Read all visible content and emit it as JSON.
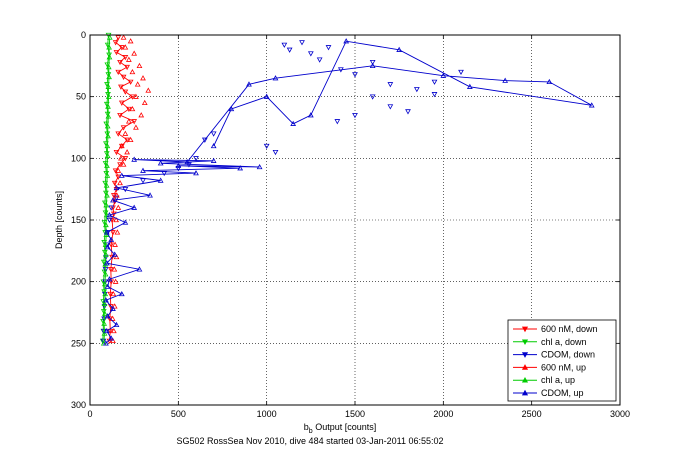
{
  "chart_data": {
    "type": "scatter",
    "title": "",
    "xlabel_main": "b",
    "xlabel_sub": "b",
    "xlabel_rest": " Output [counts]",
    "ylabel": "Depth [counts]",
    "caption": "SG502 RossSea Nov 2010, dive 484 started 03-Jan-2011 06:55:02",
    "xlim": [
      0,
      3000
    ],
    "ylim": [
      0,
      300
    ],
    "y_reversed": true,
    "grid": true,
    "xticks": [
      0,
      500,
      1000,
      1500,
      2000,
      2500,
      3000
    ],
    "yticks": [
      0,
      50,
      100,
      150,
      200,
      250,
      300
    ],
    "legend_position": "bottom-right",
    "series": [
      {
        "name": "600 nM, down",
        "color": "#ff0000",
        "marker": "triangle-down",
        "line": true,
        "points": [
          [
            160,
            2
          ],
          [
            145,
            6
          ],
          [
            180,
            10
          ],
          [
            150,
            14
          ],
          [
            200,
            18
          ],
          [
            170,
            22
          ],
          [
            210,
            26
          ],
          [
            160,
            30
          ],
          [
            190,
            34
          ],
          [
            230,
            38
          ],
          [
            175,
            42
          ],
          [
            200,
            46
          ],
          [
            240,
            50
          ],
          [
            180,
            55
          ],
          [
            220,
            60
          ],
          [
            170,
            65
          ],
          [
            250,
            70
          ],
          [
            190,
            75
          ],
          [
            160,
            80
          ],
          [
            210,
            85
          ],
          [
            180,
            90
          ],
          [
            150,
            95
          ],
          [
            200,
            100
          ],
          [
            170,
            105
          ],
          [
            145,
            110
          ],
          [
            160,
            115
          ],
          [
            140,
            120
          ],
          [
            150,
            125
          ],
          [
            135,
            130
          ],
          [
            140,
            135
          ],
          [
            130,
            140
          ],
          [
            135,
            145
          ],
          [
            125,
            150
          ],
          [
            130,
            160
          ],
          [
            120,
            170
          ],
          [
            125,
            180
          ],
          [
            118,
            190
          ],
          [
            120,
            200
          ],
          [
            115,
            210
          ],
          [
            118,
            220
          ],
          [
            112,
            230
          ],
          [
            115,
            240
          ],
          [
            110,
            248
          ]
        ]
      },
      {
        "name": "chl a, down",
        "color": "#00cc00",
        "marker": "triangle-down",
        "line": true,
        "points": [
          [
            105,
            0
          ],
          [
            100,
            8
          ],
          [
            108,
            16
          ],
          [
            98,
            24
          ],
          [
            104,
            32
          ],
          [
            96,
            40
          ],
          [
            102,
            48
          ],
          [
            95,
            56
          ],
          [
            100,
            64
          ],
          [
            92,
            72
          ],
          [
            98,
            80
          ],
          [
            90,
            88
          ],
          [
            95,
            96
          ],
          [
            88,
            104
          ],
          [
            92,
            112
          ],
          [
            86,
            120
          ],
          [
            90,
            128
          ],
          [
            84,
            136
          ],
          [
            88,
            144
          ],
          [
            82,
            152
          ],
          [
            86,
            160
          ],
          [
            80,
            168
          ],
          [
            84,
            176
          ],
          [
            78,
            184
          ],
          [
            82,
            192
          ],
          [
            76,
            200
          ],
          [
            80,
            208
          ],
          [
            75,
            216
          ],
          [
            78,
            224
          ],
          [
            74,
            232
          ],
          [
            76,
            240
          ],
          [
            72,
            248
          ]
        ]
      },
      {
        "name": "CDOM, down",
        "color": "#0000cc",
        "marker": "triangle-down",
        "line": false,
        "points": [
          [
            1100,
            8
          ],
          [
            1130,
            12
          ],
          [
            1200,
            6
          ],
          [
            1250,
            15
          ],
          [
            1300,
            20
          ],
          [
            1350,
            10
          ],
          [
            1420,
            28
          ],
          [
            1500,
            32
          ],
          [
            1600,
            22
          ],
          [
            1700,
            40
          ],
          [
            1850,
            44
          ],
          [
            1950,
            38
          ],
          [
            2100,
            30
          ],
          [
            1600,
            50
          ],
          [
            1700,
            58
          ],
          [
            1800,
            62
          ],
          [
            1950,
            48
          ],
          [
            1500,
            65
          ],
          [
            1400,
            70
          ],
          [
            700,
            80
          ],
          [
            650,
            85
          ],
          [
            1000,
            90
          ],
          [
            1050,
            95
          ],
          [
            600,
            100
          ],
          [
            560,
            105
          ],
          [
            500,
            108
          ],
          [
            420,
            112
          ],
          [
            300,
            118
          ],
          [
            200,
            125
          ],
          [
            150,
            132
          ],
          [
            120,
            140
          ],
          [
            110,
            150
          ],
          [
            100,
            160
          ],
          [
            95,
            170
          ],
          [
            90,
            180
          ],
          [
            88,
            190
          ],
          [
            86,
            200
          ],
          [
            84,
            210
          ],
          [
            82,
            220
          ],
          [
            80,
            230
          ],
          [
            78,
            240
          ],
          [
            76,
            248
          ]
        ]
      },
      {
        "name": "600 nM, up",
        "color": "#ff0000",
        "marker": "triangle-up",
        "line": false,
        "points": [
          [
            130,
            248
          ],
          [
            135,
            240
          ],
          [
            128,
            230
          ],
          [
            140,
            220
          ],
          [
            132,
            210
          ],
          [
            145,
            200
          ],
          [
            138,
            190
          ],
          [
            150,
            180
          ],
          [
            142,
            170
          ],
          [
            155,
            160
          ],
          [
            148,
            150
          ],
          [
            160,
            140
          ],
          [
            152,
            130
          ],
          [
            170,
            120
          ],
          [
            160,
            110
          ],
          [
            190,
            105
          ],
          [
            175,
            100
          ],
          [
            210,
            95
          ],
          [
            180,
            90
          ],
          [
            230,
            85
          ],
          [
            200,
            80
          ],
          [
            260,
            75
          ],
          [
            220,
            70
          ],
          [
            290,
            65
          ],
          [
            240,
            60
          ],
          [
            310,
            55
          ],
          [
            260,
            50
          ],
          [
            330,
            45
          ],
          [
            270,
            40
          ],
          [
            300,
            35
          ],
          [
            240,
            30
          ],
          [
            280,
            25
          ],
          [
            220,
            20
          ],
          [
            250,
            15
          ],
          [
            200,
            10
          ],
          [
            230,
            5
          ],
          [
            190,
            2
          ]
        ]
      },
      {
        "name": "chl a, up",
        "color": "#00cc00",
        "marker": "triangle-up",
        "line": true,
        "points": [
          [
            78,
            250
          ],
          [
            82,
            242
          ],
          [
            80,
            234
          ],
          [
            84,
            226
          ],
          [
            82,
            218
          ],
          [
            86,
            210
          ],
          [
            84,
            202
          ],
          [
            88,
            194
          ],
          [
            86,
            186
          ],
          [
            90,
            178
          ],
          [
            88,
            170
          ],
          [
            92,
            162
          ],
          [
            90,
            154
          ],
          [
            94,
            146
          ],
          [
            92,
            138
          ],
          [
            96,
            130
          ],
          [
            94,
            122
          ],
          [
            98,
            114
          ],
          [
            96,
            106
          ],
          [
            100,
            98
          ],
          [
            98,
            90
          ],
          [
            102,
            82
          ],
          [
            100,
            74
          ],
          [
            104,
            66
          ],
          [
            102,
            58
          ],
          [
            106,
            50
          ],
          [
            104,
            42
          ],
          [
            108,
            34
          ],
          [
            106,
            26
          ],
          [
            110,
            18
          ],
          [
            108,
            10
          ],
          [
            112,
            2
          ]
        ]
      },
      {
        "name": "CDOM, up",
        "color": "#0000cc",
        "marker": "triangle-up",
        "line": true,
        "points": [
          [
            90,
            250
          ],
          [
            120,
            246
          ],
          [
            95,
            240
          ],
          [
            150,
            235
          ],
          [
            100,
            228
          ],
          [
            130,
            222
          ],
          [
            90,
            215
          ],
          [
            180,
            210
          ],
          [
            100,
            204
          ],
          [
            110,
            198
          ],
          [
            280,
            190
          ],
          [
            95,
            185
          ],
          [
            140,
            178
          ],
          [
            100,
            172
          ],
          [
            120,
            166
          ],
          [
            95,
            160
          ],
          [
            200,
            152
          ],
          [
            110,
            146
          ],
          [
            250,
            140
          ],
          [
            130,
            134
          ],
          [
            340,
            130
          ],
          [
            150,
            124
          ],
          [
            400,
            118
          ],
          [
            180,
            114
          ],
          [
            600,
            112
          ],
          [
            300,
            110
          ],
          [
            850,
            108
          ],
          [
            500,
            106
          ],
          [
            960,
            107
          ],
          [
            400,
            104
          ],
          [
            700,
            102
          ],
          [
            250,
            101
          ],
          [
            550,
            103
          ],
          [
            900,
            40
          ],
          [
            1050,
            35
          ],
          [
            1600,
            25
          ],
          [
            2000,
            33
          ],
          [
            2350,
            37
          ],
          [
            2600,
            38
          ],
          [
            2840,
            57
          ],
          [
            2150,
            42
          ],
          [
            1750,
            12
          ],
          [
            1450,
            5
          ],
          [
            1250,
            65
          ],
          [
            1150,
            72
          ],
          [
            1000,
            50
          ],
          [
            800,
            60
          ],
          [
            700,
            90
          ]
        ]
      }
    ]
  }
}
